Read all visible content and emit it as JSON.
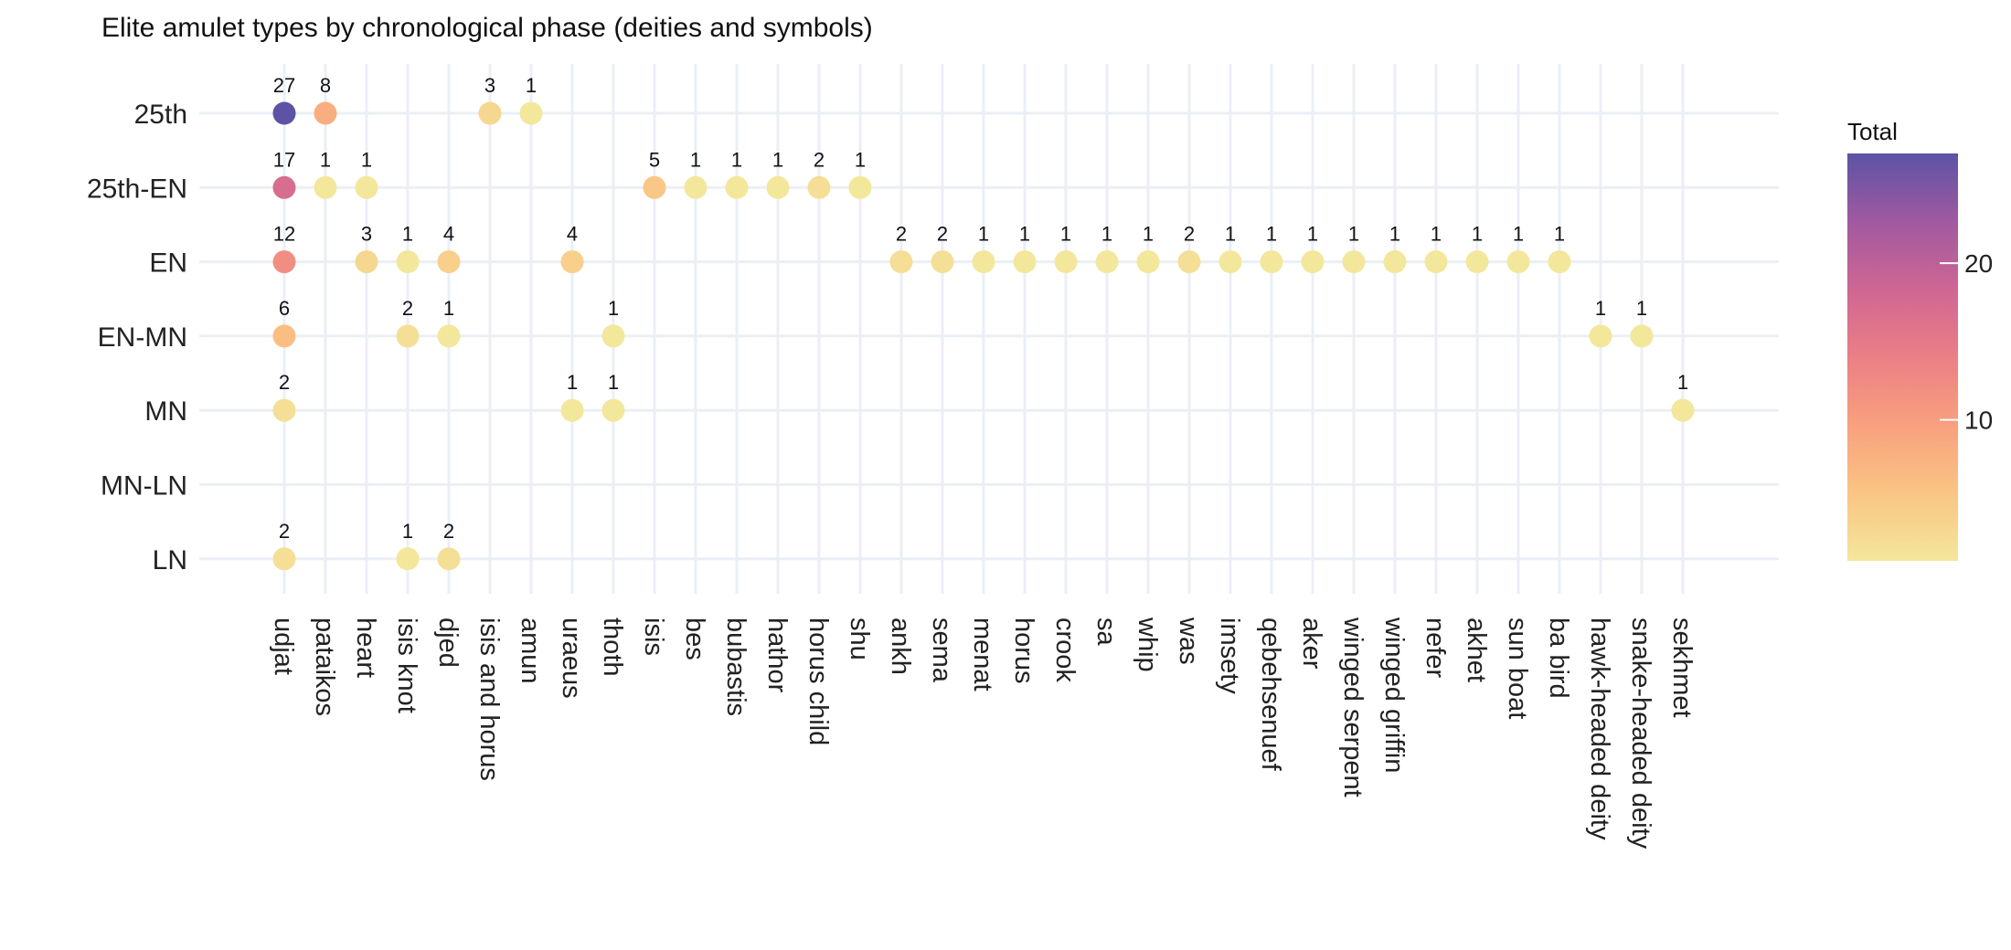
{
  "chart_data": {
    "type": "scatter",
    "title": "Elite amulet types by chronological phase (deities and symbols)",
    "xlabel": "",
    "ylabel": "",
    "categories": [
      "udjat",
      "pataikos",
      "heart",
      "isis knot",
      "djed",
      "isis and horus",
      "amun",
      "uraeus",
      "thoth",
      "isis",
      "bes",
      "bubastis",
      "hathor",
      "horus child",
      "shu",
      "ankh",
      "sema",
      "menat",
      "horus",
      "crook",
      "sa",
      "whip",
      "was",
      "imsety",
      "qebehsenuef",
      "aker",
      "winged serpent",
      "winged griffin",
      "nefer",
      "akhet",
      "sun boat",
      "ba bird",
      "hawk-headed deity",
      "snake-headed deity",
      "sekhmet"
    ],
    "phases": [
      "25th",
      "25th-EN",
      "EN",
      "EN-MN",
      "MN",
      "MN-LN",
      "LN"
    ],
    "points": [
      {
        "type": "udjat",
        "phase": "25th",
        "total": 27
      },
      {
        "type": "pataikos",
        "phase": "25th",
        "total": 8
      },
      {
        "type": "isis and horus",
        "phase": "25th",
        "total": 3
      },
      {
        "type": "amun",
        "phase": "25th",
        "total": 1
      },
      {
        "type": "udjat",
        "phase": "25th-EN",
        "total": 17
      },
      {
        "type": "pataikos",
        "phase": "25th-EN",
        "total": 1
      },
      {
        "type": "heart",
        "phase": "25th-EN",
        "total": 1
      },
      {
        "type": "isis",
        "phase": "25th-EN",
        "total": 5
      },
      {
        "type": "bes",
        "phase": "25th-EN",
        "total": 1
      },
      {
        "type": "bubastis",
        "phase": "25th-EN",
        "total": 1
      },
      {
        "type": "hathor",
        "phase": "25th-EN",
        "total": 1
      },
      {
        "type": "horus child",
        "phase": "25th-EN",
        "total": 2
      },
      {
        "type": "shu",
        "phase": "25th-EN",
        "total": 1
      },
      {
        "type": "udjat",
        "phase": "EN",
        "total": 12
      },
      {
        "type": "heart",
        "phase": "EN",
        "total": 3
      },
      {
        "type": "isis knot",
        "phase": "EN",
        "total": 1
      },
      {
        "type": "djed",
        "phase": "EN",
        "total": 4
      },
      {
        "type": "uraeus",
        "phase": "EN",
        "total": 4
      },
      {
        "type": "ankh",
        "phase": "EN",
        "total": 2
      },
      {
        "type": "sema",
        "phase": "EN",
        "total": 2
      },
      {
        "type": "menat",
        "phase": "EN",
        "total": 1
      },
      {
        "type": "horus",
        "phase": "EN",
        "total": 1
      },
      {
        "type": "crook",
        "phase": "EN",
        "total": 1
      },
      {
        "type": "sa",
        "phase": "EN",
        "total": 1
      },
      {
        "type": "whip",
        "phase": "EN",
        "total": 1
      },
      {
        "type": "was",
        "phase": "EN",
        "total": 2
      },
      {
        "type": "imsety",
        "phase": "EN",
        "total": 1
      },
      {
        "type": "qebehsenuef",
        "phase": "EN",
        "total": 1
      },
      {
        "type": "aker",
        "phase": "EN",
        "total": 1
      },
      {
        "type": "winged serpent",
        "phase": "EN",
        "total": 1
      },
      {
        "type": "winged griffin",
        "phase": "EN",
        "total": 1
      },
      {
        "type": "nefer",
        "phase": "EN",
        "total": 1
      },
      {
        "type": "akhet",
        "phase": "EN",
        "total": 1
      },
      {
        "type": "sun boat",
        "phase": "EN",
        "total": 1
      },
      {
        "type": "ba bird",
        "phase": "EN",
        "total": 1
      },
      {
        "type": "udjat",
        "phase": "EN-MN",
        "total": 6
      },
      {
        "type": "isis knot",
        "phase": "EN-MN",
        "total": 2
      },
      {
        "type": "djed",
        "phase": "EN-MN",
        "total": 1
      },
      {
        "type": "thoth",
        "phase": "EN-MN",
        "total": 1
      },
      {
        "type": "hawk-headed deity",
        "phase": "EN-MN",
        "total": 1
      },
      {
        "type": "snake-headed deity",
        "phase": "EN-MN",
        "total": 1
      },
      {
        "type": "udjat",
        "phase": "MN",
        "total": 2
      },
      {
        "type": "uraeus",
        "phase": "MN",
        "total": 1
      },
      {
        "type": "thoth",
        "phase": "MN",
        "total": 1
      },
      {
        "type": "sekhmet",
        "phase": "MN",
        "total": 1
      },
      {
        "type": "udjat",
        "phase": "LN",
        "total": 2
      },
      {
        "type": "isis knot",
        "phase": "LN",
        "total": 1
      },
      {
        "type": "djed",
        "phase": "LN",
        "total": 2
      }
    ],
    "legend": {
      "title": "Total",
      "position": "right",
      "range": [
        1,
        27
      ],
      "ticks": [
        10,
        20
      ],
      "colors": [
        "#F3E79B",
        "#FAC484",
        "#F8A07E",
        "#EB7F86",
        "#CE6693",
        "#A059A0",
        "#5C53A5"
      ]
    },
    "grid": true
  }
}
